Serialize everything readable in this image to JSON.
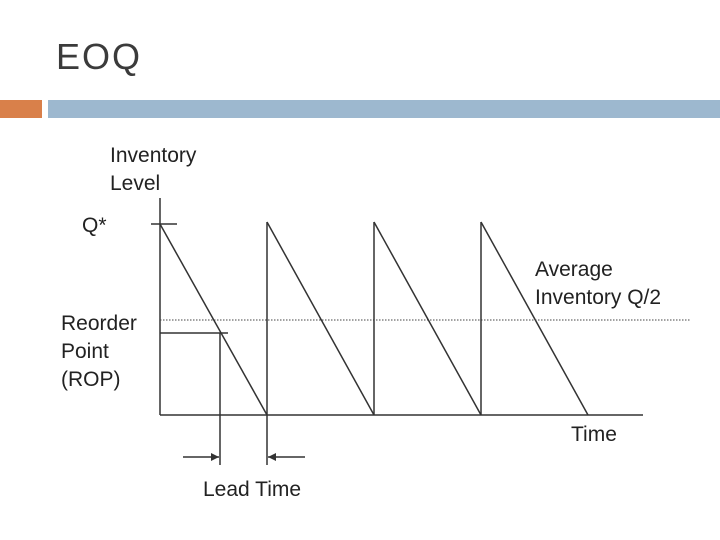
{
  "slide": {
    "title": "EOQ",
    "accent_colors": {
      "orange": "#d9804a",
      "blue": "#9db8cf"
    }
  },
  "diagram": {
    "y_axis_label": "Inventory\nLevel",
    "q_label": "Q*",
    "average_label": "Average\nInventory Q/2",
    "reorder_label": "Reorder\nPoint\n(ROP)",
    "x_axis_label": "Time",
    "lead_time_label": "Lead Time",
    "cycles": 4
  }
}
